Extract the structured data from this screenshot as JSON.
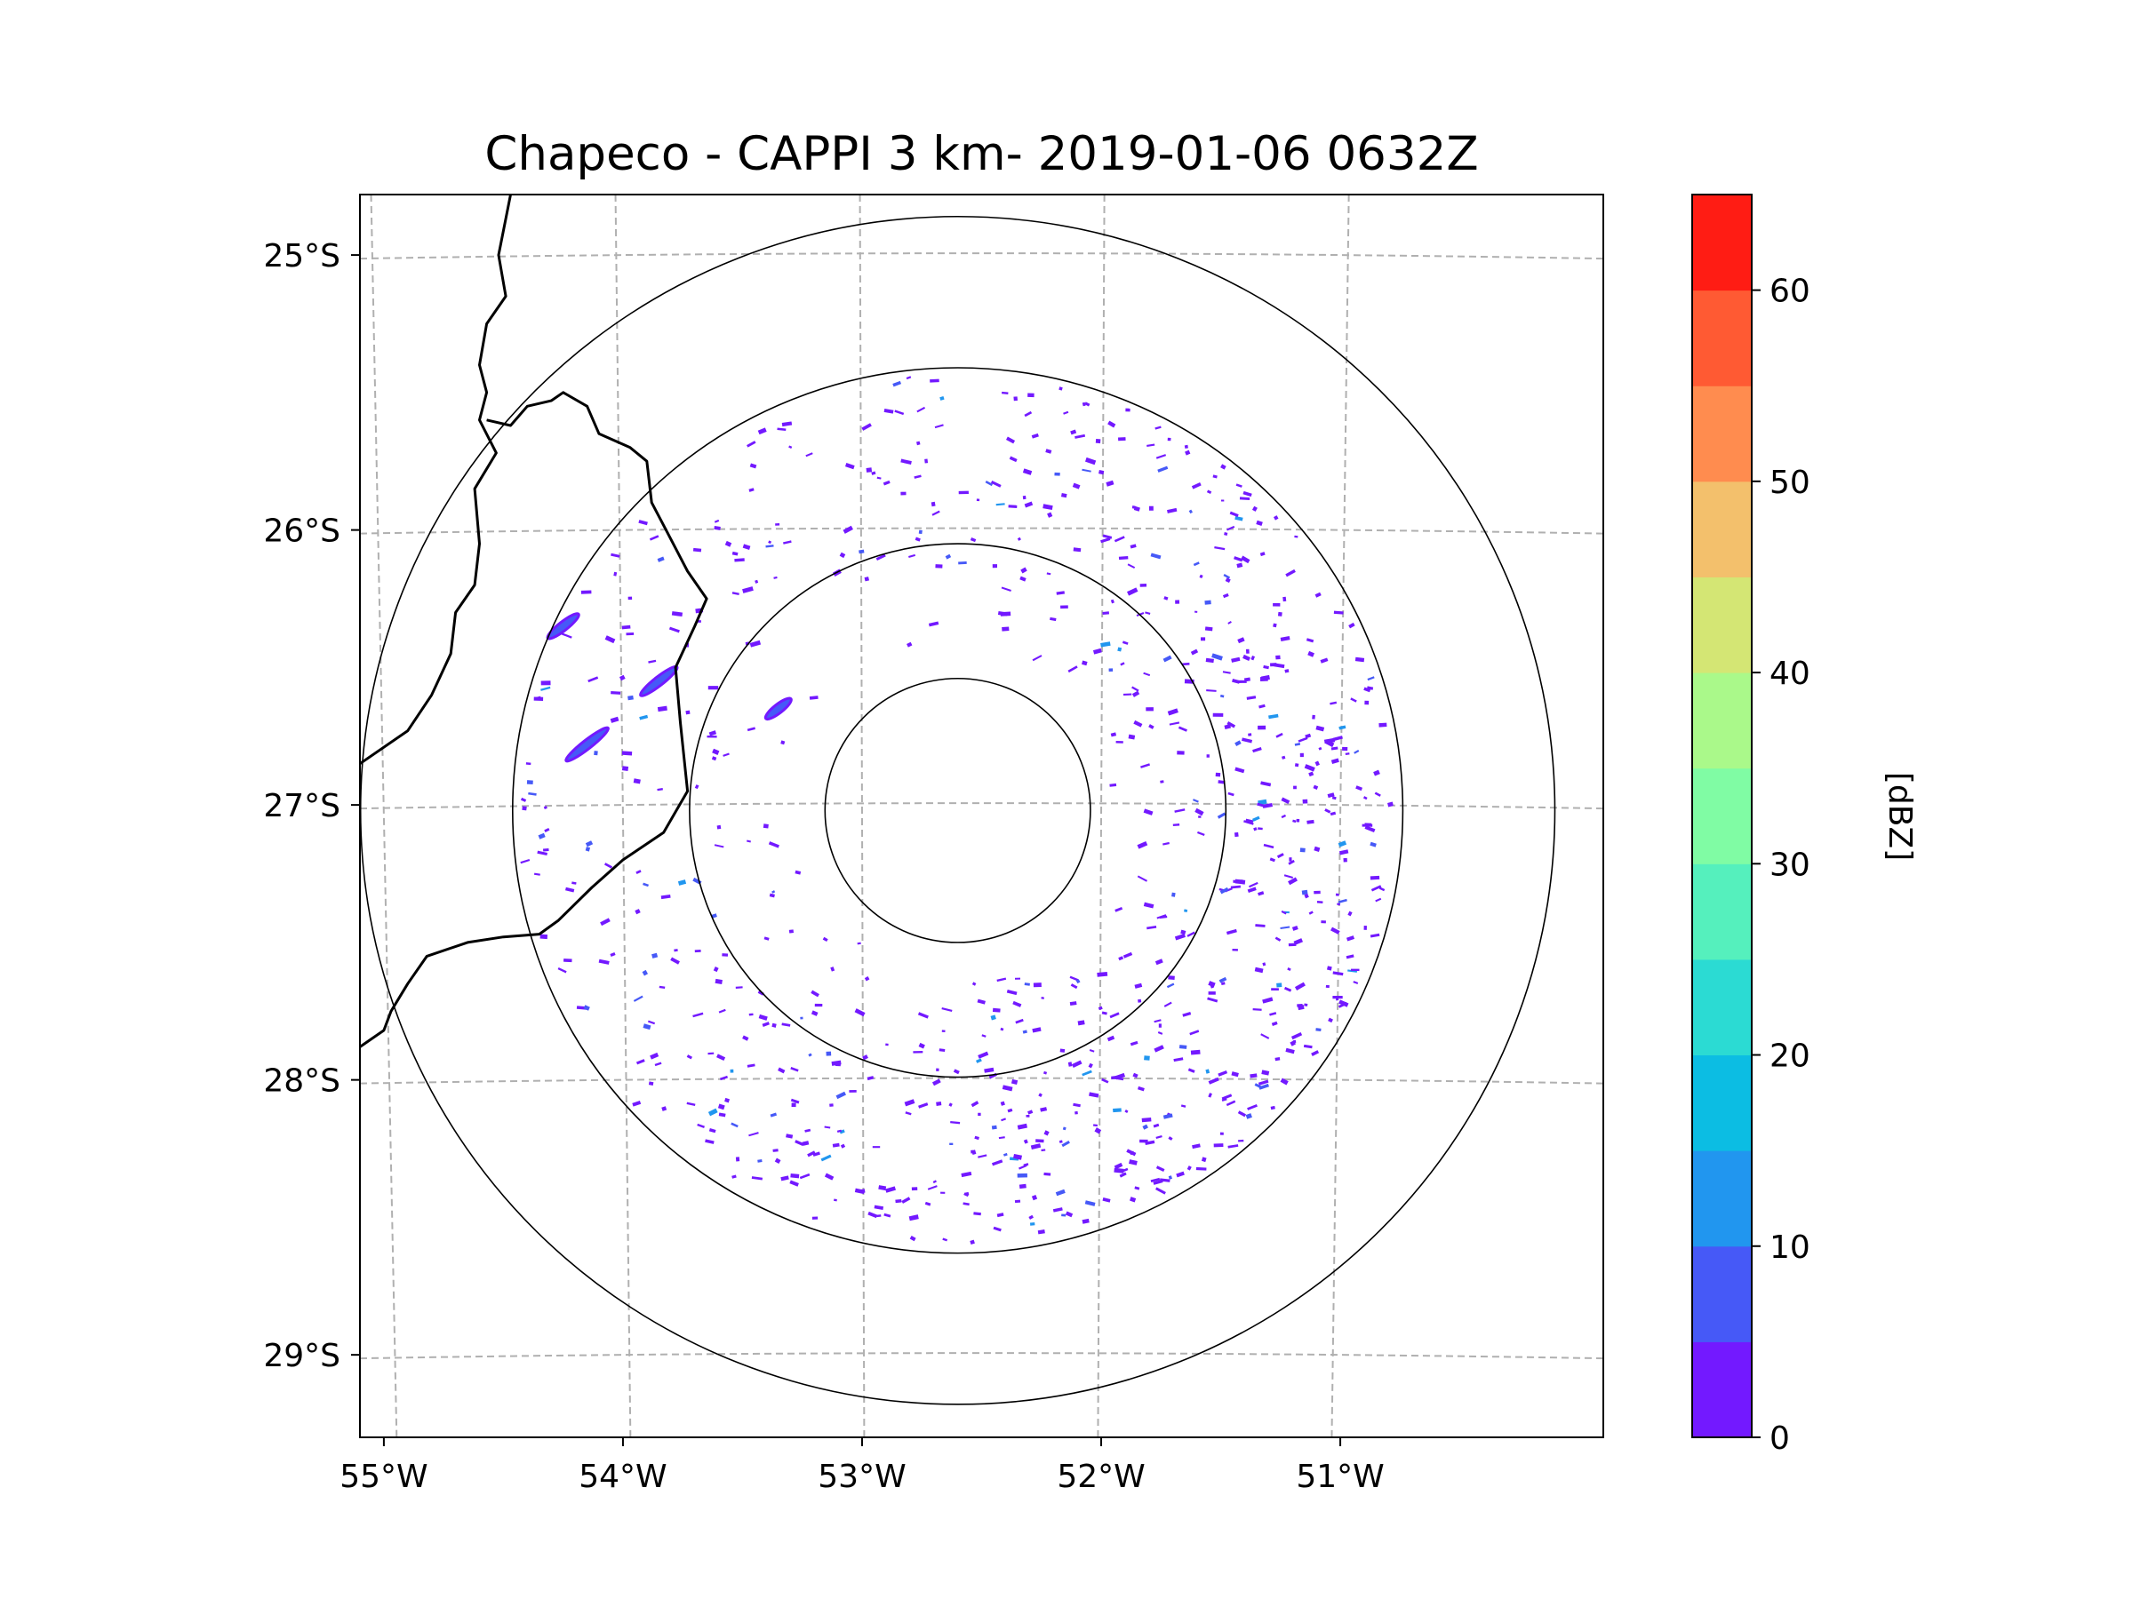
{
  "chart_data": {
    "type": "radar-ppi-map",
    "title": "Chapeco - CAPPI 3 km- 2019-01-06 0632Z",
    "radar_site": {
      "name": "Chapeco",
      "lon": -52.6,
      "lat": -27.02
    },
    "product": "CAPPI 3 km",
    "timestamp": "2019-01-06 0632Z",
    "map_extent": {
      "lon_min": -55.1,
      "lon_max": -49.9,
      "lat_min": -29.3,
      "lat_max": -24.78
    },
    "lat_ticks": [
      {
        "value": -25,
        "label": "25°S"
      },
      {
        "value": -26,
        "label": "26°S"
      },
      {
        "value": -27,
        "label": "27°S"
      },
      {
        "value": -28,
        "label": "28°S"
      },
      {
        "value": -29,
        "label": "29°S"
      }
    ],
    "lon_ticks": [
      {
        "value": -55,
        "label": "55°W"
      },
      {
        "value": -54,
        "label": "54°W"
      },
      {
        "value": -53,
        "label": "53°W"
      },
      {
        "value": -52,
        "label": "52°W"
      },
      {
        "value": -51,
        "label": "51°W"
      }
    ],
    "range_rings_deg_lat": [
      0.48,
      0.97,
      1.61,
      2.16
    ],
    "gridlines": true,
    "colorbar": {
      "label": "[dBZ]",
      "min": 0,
      "max": 65,
      "bin_width": 5,
      "tick_values": [
        0,
        10,
        20,
        30,
        40,
        50,
        60
      ],
      "tick_labels": [
        "0",
        "10",
        "20",
        "30",
        "40",
        "50",
        "60"
      ],
      "colors": [
        "#7319ff",
        "#4659f7",
        "#2196ef",
        "#0cbde3",
        "#2bdbd3",
        "#55f0bd",
        "#80fca4",
        "#aaf98a",
        "#d4e674",
        "#f3c06c",
        "#ff8c4f",
        "#ff5a33",
        "#ff1c14"
      ]
    },
    "echo_distribution": {
      "dominant_value_range_dbz": [
        0,
        10
      ],
      "inner_clear_radius_deg": 0.48,
      "outer_echo_radius_deg": 1.61,
      "heavier_sector": "east and south-east",
      "notable_bands": [
        {
          "lon": -54.15,
          "lat": -26.78,
          "value_dbz": 8
        },
        {
          "lon": -53.85,
          "lat": -26.55,
          "value_dbz": 8
        },
        {
          "lon": -54.25,
          "lat": -26.35,
          "value_dbz": 8
        },
        {
          "lon": -53.35,
          "lat": -26.65,
          "value_dbz": 10
        }
      ]
    },
    "boundaries": [
      {
        "name": "border-west",
        "points": [
          [
            -54.47,
            -24.78
          ],
          [
            -54.52,
            -25.0
          ],
          [
            -54.49,
            -25.15
          ],
          [
            -54.57,
            -25.25
          ],
          [
            -54.6,
            -25.4
          ],
          [
            -54.57,
            -25.5
          ],
          [
            -54.6,
            -25.6
          ],
          [
            -54.53,
            -25.72
          ],
          [
            -54.62,
            -25.85
          ],
          [
            -54.6,
            -26.05
          ],
          [
            -54.62,
            -26.2
          ],
          [
            -54.7,
            -26.3
          ],
          [
            -54.72,
            -26.45
          ],
          [
            -54.8,
            -26.6
          ],
          [
            -54.9,
            -26.73
          ],
          [
            -55.1,
            -26.85
          ]
        ]
      },
      {
        "name": "border-middle",
        "points": [
          [
            -54.57,
            -25.6
          ],
          [
            -54.47,
            -25.62
          ],
          [
            -54.4,
            -25.55
          ],
          [
            -54.3,
            -25.53
          ],
          [
            -54.25,
            -25.5
          ],
          [
            -54.15,
            -25.55
          ],
          [
            -54.1,
            -25.65
          ],
          [
            -53.97,
            -25.7
          ],
          [
            -53.9,
            -25.75
          ],
          [
            -53.88,
            -25.9
          ],
          [
            -53.82,
            -26.0
          ],
          [
            -53.73,
            -26.15
          ],
          [
            -53.65,
            -26.25
          ],
          [
            -53.7,
            -26.35
          ],
          [
            -53.78,
            -26.5
          ],
          [
            -53.76,
            -26.7
          ],
          [
            -53.73,
            -26.95
          ],
          [
            -53.83,
            -27.1
          ],
          [
            -54.0,
            -27.2
          ],
          [
            -54.13,
            -27.3
          ],
          [
            -54.27,
            -27.42
          ],
          [
            -54.35,
            -27.47
          ],
          [
            -54.5,
            -27.48
          ],
          [
            -54.65,
            -27.5
          ],
          [
            -54.82,
            -27.55
          ],
          [
            -54.9,
            -27.65
          ],
          [
            -54.97,
            -27.75
          ],
          [
            -55.0,
            -27.82
          ],
          [
            -55.1,
            -27.88
          ]
        ]
      }
    ]
  }
}
